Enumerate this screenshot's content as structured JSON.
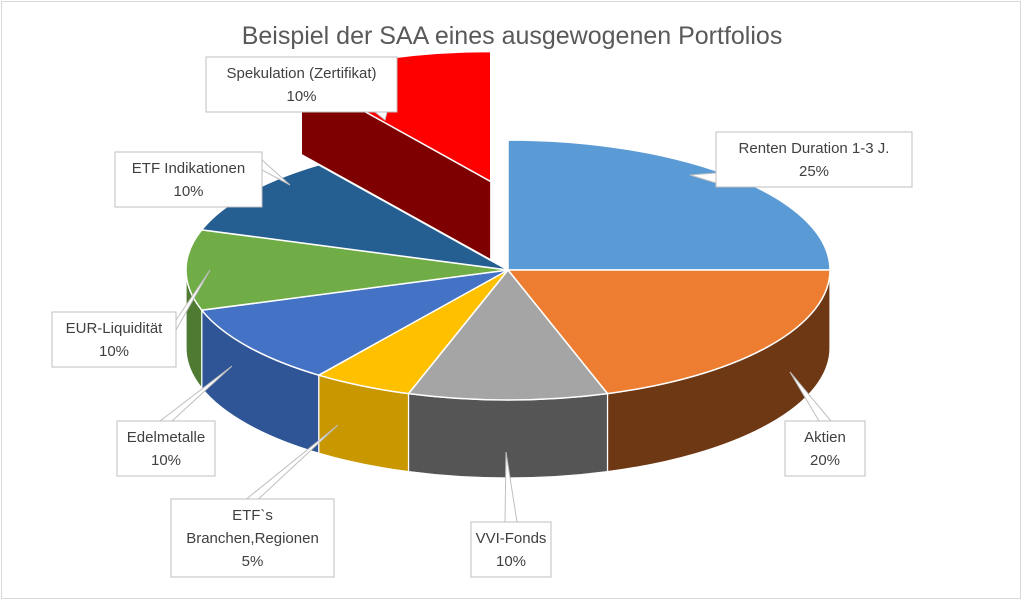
{
  "chart_data": {
    "type": "pie",
    "title": "Beispiel der SAA eines ausgewogenen Portfolios",
    "slices": [
      {
        "label": "Renten Duration 1-3 J.",
        "value": 25,
        "value_label": "25%",
        "color": "#5b9bd5",
        "side_color": "#41719c"
      },
      {
        "label": "Aktien",
        "value": 20,
        "value_label": "20%",
        "color": "#ed7d31",
        "side_color": "#6e3815"
      },
      {
        "label": "VVI-Fonds",
        "value": 10,
        "value_label": "10%",
        "color": "#a5a5a5",
        "side_color": "#555555"
      },
      {
        "label": "ETF`s Branchen,Regionen",
        "label_lines": [
          "ETF`s",
          "Branchen,Regionen"
        ],
        "value": 5,
        "value_label": "5%",
        "color": "#ffc000",
        "side_color": "#c99700"
      },
      {
        "label": "Edelmetalle",
        "value": 10,
        "value_label": "10%",
        "color": "#4472c4",
        "side_color": "#2f5597"
      },
      {
        "label": "EUR-Liquidität",
        "value": 10,
        "value_label": "10%",
        "color": "#70ad47",
        "side_color": "#4e7a31"
      },
      {
        "label": "ETF Indikationen",
        "value": 10,
        "value_label": "10%",
        "color": "#255e91",
        "side_color": "#173b5b"
      },
      {
        "label": "Spekulation (Zertifikat)",
        "value": 10,
        "value_label": "10%",
        "color": "#ff0000",
        "side_color": "#7f0000",
        "exploded": true
      }
    ],
    "legend": "none",
    "style": "3d-exploded-pie"
  }
}
